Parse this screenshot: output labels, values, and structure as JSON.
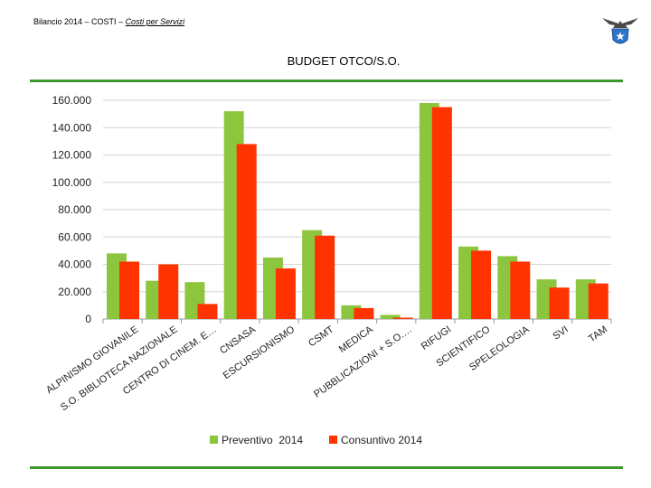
{
  "header": {
    "prefix": "Bilancio 2014 – COSTI – ",
    "link": "Costi per Servizi"
  },
  "logo": {
    "icon": "cai-eagle-star-logo"
  },
  "chart_data": {
    "type": "bar",
    "title": "BUDGET OTCO/S.O.",
    "categories": [
      "ALPINISMO GIOVANILE",
      "S.O. BIBLIOTECA NAZIONALE",
      "CENTRO DI CINEM. E…",
      "CNSASA",
      "ESCURSIONISMO",
      "CSMT",
      "MEDICA",
      "PUBBLICAZIONI + S.O.…",
      "RIFUGI",
      "SCIENTIFICO",
      "SPELEOLOGIA",
      "SVI",
      "TAM"
    ],
    "series": [
      {
        "name": "Preventivo  2014",
        "color": "#8cc63f",
        "values": [
          48000,
          28000,
          27000,
          152000,
          45000,
          65000,
          10000,
          3000,
          158000,
          53000,
          46000,
          29000,
          29000
        ]
      },
      {
        "name": "Consuntivo 2014",
        "color": "#ff3300",
        "values": [
          42000,
          40000,
          11000,
          128000,
          37000,
          61000,
          8000,
          1000,
          155000,
          50000,
          42000,
          23000,
          26000
        ]
      }
    ],
    "yticks": [
      "0",
      "20.000",
      "40.000",
      "60.000",
      "80.000",
      "100.000",
      "120.000",
      "140.000",
      "160.000"
    ],
    "ylim": [
      0,
      160000
    ],
    "grid": true,
    "legend": "bottom"
  }
}
